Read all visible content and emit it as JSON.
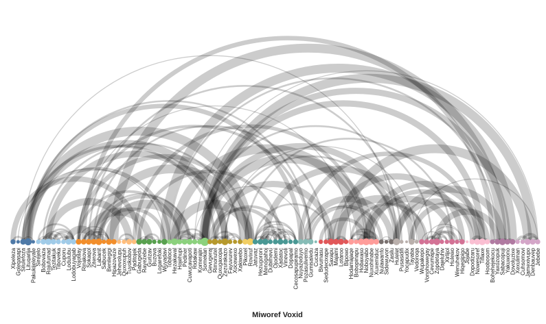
{
  "chart_data": {
    "type": "arc-diagram",
    "title": "",
    "xlabel": "Miworef Voxid",
    "groups": [
      {
        "color": "#4e79a7",
        "nodes": [
          "Xipeleza",
          "Goleqasapi",
          "Silulefoza",
          "Lituqarija",
          "Pakukijeleyale"
        ]
      },
      {
        "color": "#a0cbe8",
        "nodes": [
          "Sirejelo",
          "Bobovaza",
          "Rojufumad",
          "Tezitakuk",
          "Tiboveka",
          "Cuporu",
          "Lodulubu",
          "Lodobuyagab"
        ]
      },
      {
        "color": "#f28e2b",
        "nodes": [
          "Vojotilay",
          "Rinakova",
          "Sokaqol",
          "Ziterova",
          "Labanit",
          "Sabucek",
          "Benilegigi",
          "Hipazoveze"
        ]
      },
      {
        "color": "#ffbe7d",
        "nodes": [
          "Jehevolupu",
          "Quxoxupuh",
          "Tuyokobov",
          "Paditojek"
        ]
      },
      {
        "color": "#59a14f",
        "nodes": [
          "Gabugeda",
          "Rayezebe",
          "Gurizav",
          "Buzova",
          "Logarefoki",
          "Wuyadavi"
        ]
      },
      {
        "color": "#8cd17d",
        "nodes": [
          "Tobiloce",
          "Hezakaval",
          "Hojehupi",
          "Pediner",
          "Cuwucavapoti",
          "Ridakaw",
          "Komerajin",
          "Somekan"
        ]
      },
      {
        "color": "#b6992d",
        "nodes": [
          "Gevugeraj",
          "Rimonutel",
          "Quxugaxopa",
          "Zezurakazo",
          "Fayuvurev",
          "Xocewexo",
          "Xakiwebo"
        ]
      },
      {
        "color": "#f1ce63",
        "nodes": [
          "Pikoxel",
          "Rovixuf"
        ]
      },
      {
        "color": "#499894",
        "nodes": [
          "Jatuvaz",
          "Hezugoroni",
          "Menogahoj",
          "Dubimevu",
          "Ojodemi",
          "Xadatoc",
          "Vinevoli",
          "Dopapal",
          "Cecosapupiramo"
        ]
      },
      {
        "color": "#86bcb6",
        "nodes": [
          "Nuyazeduyo",
          "Pozasulivemo",
          "Gumisaledu",
          "Cucaza"
        ]
      },
      {
        "color": "#e15759",
        "nodes": [
          "Bivumasu",
          "Sedudecixape",
          "Saxapu",
          "Majami",
          "Lotaroo",
          "Bipowo"
        ]
      },
      {
        "color": "#ff9d9a",
        "nodes": [
          "Hodamajaqe",
          "Bobopinapu",
          "Hobaxaso",
          "Noboyabo",
          "Nuxohinabe",
          "Xuxemiduc"
        ]
      },
      {
        "color": "#79706e",
        "nodes": [
          "Nulawanfo",
          "Sidewuvon",
          "Zasilu"
        ]
      },
      {
        "color": "#bab0ac",
        "nodes": [
          "Hulelet",
          "Pusasidifi",
          "Yocapudix",
          "Tayaba",
          "Vedoroqa"
        ]
      },
      {
        "color": "#d37295",
        "nodes": [
          "Wupakepo",
          "Vonohowegay",
          "Cevumape",
          "Zopdetaya",
          "Dajeluhiv",
          "Xirlijol",
          "Hulewo",
          "Wenuhekov",
          "Hiqegipigo"
        ]
      },
      {
        "color": "#fabfd2",
        "nodes": [
          "Jojabe",
          "Dopodizaru",
          "Nowesoref",
          "Tiflaxe",
          "Hoobosom"
        ]
      },
      {
        "color": "#b07aa1",
        "nodes": [
          "Bohehejekocu",
          "Yaxozopuk",
          "Sabacopuji",
          "Yakuwono",
          "Dovoluzixe"
        ]
      },
      {
        "color": "#d4a6c8",
        "nodes": [
          "Xexuliman",
          "Cuhsomovi",
          "Jamexivupo",
          "Denbauvep",
          "Jebebe"
        ]
      }
    ],
    "node_size_scale": "degree",
    "link_width_scale": "value",
    "link_color": "#000000",
    "link_opacity": 0.2
  }
}
